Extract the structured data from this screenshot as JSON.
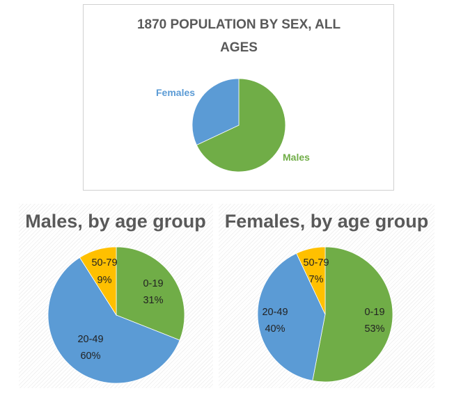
{
  "colors": {
    "green": "#70ad47",
    "blue": "#5b9bd5",
    "gold": "#ffc000"
  },
  "chart_data": [
    {
      "type": "pie",
      "title": "1870 POPULATION BY SEX, ALL AGES",
      "title_lines": [
        "1870 POPULATION BY SEX, ALL",
        "AGES"
      ],
      "categories": [
        "Males",
        "Females"
      ],
      "values": [
        68,
        32
      ],
      "colors": [
        "#70ad47",
        "#5b9bd5"
      ],
      "data_labels": [
        "Males",
        "Females"
      ],
      "legend": "none",
      "label_style": "category name, outside"
    },
    {
      "type": "pie",
      "title": "Males, by age group",
      "categories": [
        "0-19",
        "20-49",
        "50-79"
      ],
      "values": [
        31,
        60,
        9
      ],
      "colors": [
        "#70ad47",
        "#5b9bd5",
        "#ffc000"
      ],
      "data_labels": [
        {
          "category": "0-19",
          "percent": "31%"
        },
        {
          "category": "20-49",
          "percent": "60%"
        },
        {
          "category": "50-79",
          "percent": "9%"
        }
      ],
      "legend": "none"
    },
    {
      "type": "pie",
      "title": "Females, by age group",
      "categories": [
        "0-19",
        "20-49",
        "50-79"
      ],
      "values": [
        53,
        40,
        7
      ],
      "colors": [
        "#70ad47",
        "#5b9bd5",
        "#ffc000"
      ],
      "data_labels": [
        {
          "category": "0-19",
          "percent": "53%"
        },
        {
          "category": "20-49",
          "percent": "40%"
        },
        {
          "category": "50-79",
          "percent": "7%"
        }
      ],
      "legend": "none"
    }
  ]
}
